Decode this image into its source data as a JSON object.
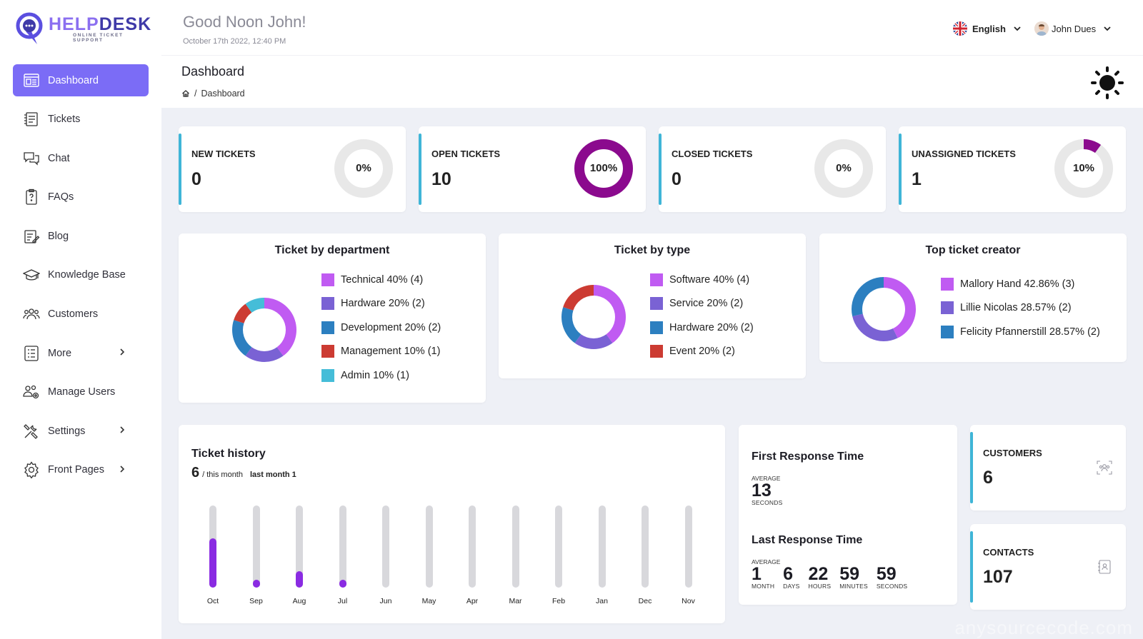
{
  "brand": {
    "name_a": "HELP",
    "name_b": "DESK",
    "tagline": "ONLINE TICKET SUPPORT"
  },
  "sidebar": {
    "items": [
      {
        "label": "Dashboard",
        "icon": "dashboard-icon",
        "active": true
      },
      {
        "label": "Tickets",
        "icon": "ticket-icon"
      },
      {
        "label": "Chat",
        "icon": "chat-icon"
      },
      {
        "label": "FAQs",
        "icon": "faq-icon"
      },
      {
        "label": "Blog",
        "icon": "blog-icon"
      },
      {
        "label": "Knowledge Base",
        "icon": "graduation-cap-icon"
      },
      {
        "label": "Customers",
        "icon": "customers-icon"
      },
      {
        "label": "More",
        "icon": "list-icon",
        "submenu": true
      },
      {
        "label": "Manage Users",
        "icon": "manage-users-icon"
      },
      {
        "label": "Settings",
        "icon": "tools-icon",
        "submenu": true
      },
      {
        "label": "Front Pages",
        "icon": "gear-icon",
        "submenu": true
      }
    ]
  },
  "header": {
    "greeting": "Good Noon John!",
    "datetime": "October 17th 2022, 12:40 PM",
    "language": "English",
    "user": "John Dues"
  },
  "page": {
    "title": "Dashboard",
    "breadcrumb": "Dashboard"
  },
  "stats": [
    {
      "label": "NEW TICKETS",
      "value": "0",
      "percent": "0%",
      "fraction": 0
    },
    {
      "label": "OPEN TICKETS",
      "value": "10",
      "percent": "100%",
      "fraction": 1
    },
    {
      "label": "CLOSED TICKETS",
      "value": "0",
      "percent": "0%",
      "fraction": 0
    },
    {
      "label": "UNASSIGNED TICKETS",
      "value": "1",
      "percent": "10%",
      "fraction": 0.1
    }
  ],
  "colors": {
    "accent": "#7b6cf6",
    "ring": "#8b0a8e",
    "ring_track": "#e8e8e8",
    "stat_bar": "#3fb5d7",
    "bar_fill": "#8a2be2",
    "bar_track": "#d8d8dc"
  },
  "chart_data": [
    {
      "type": "pie",
      "title": "Ticket by department",
      "categories": [
        "Technical 40% (4)",
        "Hardware 20% (2)",
        "Development 20% (2)",
        "Management 10% (1)",
        "Admin 10% (1)"
      ],
      "values": [
        4,
        2,
        2,
        1,
        1
      ],
      "colors": [
        "#c05bf2",
        "#7a62d4",
        "#2c7fc0",
        "#cc3b32",
        "#45bdd8"
      ]
    },
    {
      "type": "pie",
      "title": "Ticket by type",
      "categories": [
        "Software 40% (4)",
        "Service 20% (2)",
        "Hardware 20% (2)",
        "Event 20% (2)"
      ],
      "values": [
        4,
        2,
        2,
        2
      ],
      "colors": [
        "#c05bf2",
        "#7a62d4",
        "#2c7fc0",
        "#cc3b32"
      ]
    },
    {
      "type": "pie",
      "title": "Top ticket creator",
      "categories": [
        "Mallory Hand 42.86% (3)",
        "Lillie Nicolas 28.57% (2)",
        "Felicity Pfannerstill 28.57% (2)"
      ],
      "values": [
        3,
        2,
        2
      ],
      "colors": [
        "#c05bf2",
        "#7a62d4",
        "#2c7fc0"
      ]
    },
    {
      "type": "bar",
      "title": "Ticket history",
      "categories": [
        "Oct",
        "Sep",
        "Aug",
        "Jul",
        "Jun",
        "May",
        "Apr",
        "Mar",
        "Feb",
        "Jan",
        "Dec",
        "Nov"
      ],
      "values": [
        6,
        1,
        2,
        1,
        0,
        0,
        0,
        0,
        0,
        0,
        0,
        0
      ],
      "ylim": [
        0,
        10
      ]
    }
  ],
  "history": {
    "count": "6",
    "this_month": "/ this month",
    "last_month": "last month 1"
  },
  "response": {
    "first_title": "First Response Time",
    "first_avg_label": "AVERAGE",
    "first_units": [
      {
        "num": "13",
        "cap": "SECONDS"
      }
    ],
    "last_title": "Last Response Time",
    "last_avg_label": "AVERAGE",
    "last_units": [
      {
        "num": "1",
        "cap": "MONTH"
      },
      {
        "num": "6",
        "cap": "DAYS"
      },
      {
        "num": "22",
        "cap": "HOURS"
      },
      {
        "num": "59",
        "cap": "MINUTES"
      },
      {
        "num": "59",
        "cap": "SECONDS"
      }
    ]
  },
  "mini": [
    {
      "label": "CUSTOMERS",
      "value": "6",
      "icon": "customers-scan-icon"
    },
    {
      "label": "CONTACTS",
      "value": "107",
      "icon": "contact-book-icon"
    }
  ],
  "watermark": "anysourcecode.com"
}
